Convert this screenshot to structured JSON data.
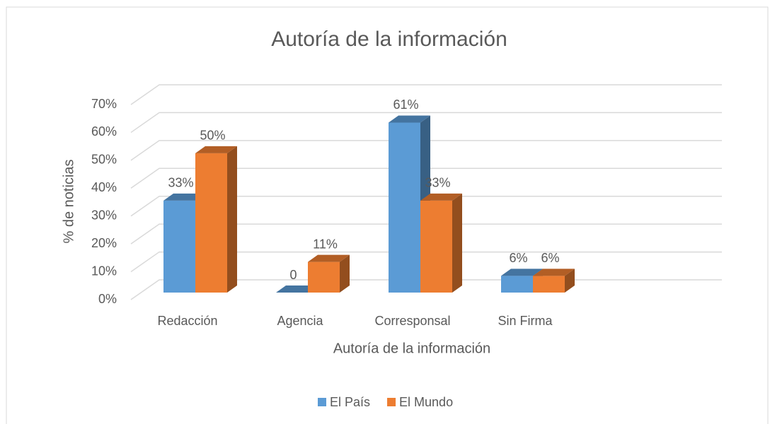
{
  "chart_data": {
    "type": "bar3d",
    "title": "Autoría de la información",
    "x_label": "Autoría de la información",
    "y_label": "% de noticias",
    "categories": [
      "Redacción",
      "Agencia",
      "Corresponsal",
      "Sin Firma"
    ],
    "series": [
      {
        "name": "El País",
        "color": "#5B9BD5",
        "values": [
          33,
          0,
          61,
          6
        ],
        "value_labels": [
          "33%",
          "0",
          "61%",
          "6%"
        ]
      },
      {
        "name": "El Mundo",
        "color": "#ED7D31",
        "values": [
          50,
          11,
          33,
          6
        ],
        "value_labels": [
          "50%",
          "11%",
          "33%",
          "6%"
        ]
      }
    ],
    "ylim": [
      0,
      70
    ],
    "yticks": [
      {
        "value": 0,
        "label": "0%"
      },
      {
        "value": 10,
        "label": "10%"
      },
      {
        "value": 20,
        "label": "20%"
      },
      {
        "value": 30,
        "label": "30%"
      },
      {
        "value": 40,
        "label": "40%"
      },
      {
        "value": 50,
        "label": "50%"
      },
      {
        "value": 60,
        "label": "60%"
      },
      {
        "value": 70,
        "label": "70%"
      }
    ],
    "grid": true,
    "legend": "bottom"
  }
}
